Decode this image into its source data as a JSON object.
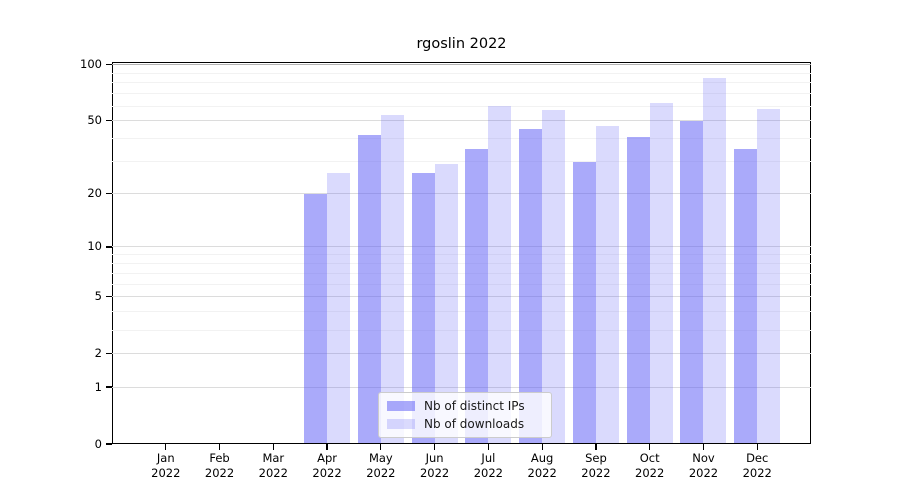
{
  "title": "rgoslin 2022",
  "chart_data": {
    "type": "bar",
    "title": "rgoslin 2022",
    "categories": [
      "Jan 2022",
      "Feb 2022",
      "Mar 2022",
      "Apr 2022",
      "May 2022",
      "Jun 2022",
      "Jul 2022",
      "Aug 2022",
      "Sep 2022",
      "Oct 2022",
      "Nov 2022",
      "Dec 2022"
    ],
    "series": [
      {
        "name": "Nb of distinct IPs",
        "color": "rgba(85,85,245,0.50)",
        "values": [
          0,
          0,
          0,
          20,
          42,
          26,
          35,
          45,
          30,
          41,
          50,
          35
        ]
      },
      {
        "name": "Nb of downloads",
        "color": "rgba(85,85,245,0.22)",
        "values": [
          0,
          0,
          0,
          26,
          54,
          29,
          60,
          57,
          47,
          62,
          85,
          58
        ]
      }
    ],
    "xlabel": "",
    "ylabel": "",
    "yscale": "log1p",
    "y_ticks": [
      0,
      1,
      2,
      5,
      10,
      20,
      50,
      100
    ],
    "y_minor_ticks": [
      3,
      4,
      6,
      7,
      8,
      9,
      30,
      40,
      60,
      70,
      80,
      90
    ],
    "ylim": [
      0,
      105
    ],
    "grid": true,
    "legend_position": "lower center",
    "colors": {
      "grid_major": "#dcdcdc",
      "grid_minor": "#f2f2f2",
      "grid_top": "#b3b3b3",
      "axis": "#000000",
      "legend_border": "#cccccc"
    }
  }
}
